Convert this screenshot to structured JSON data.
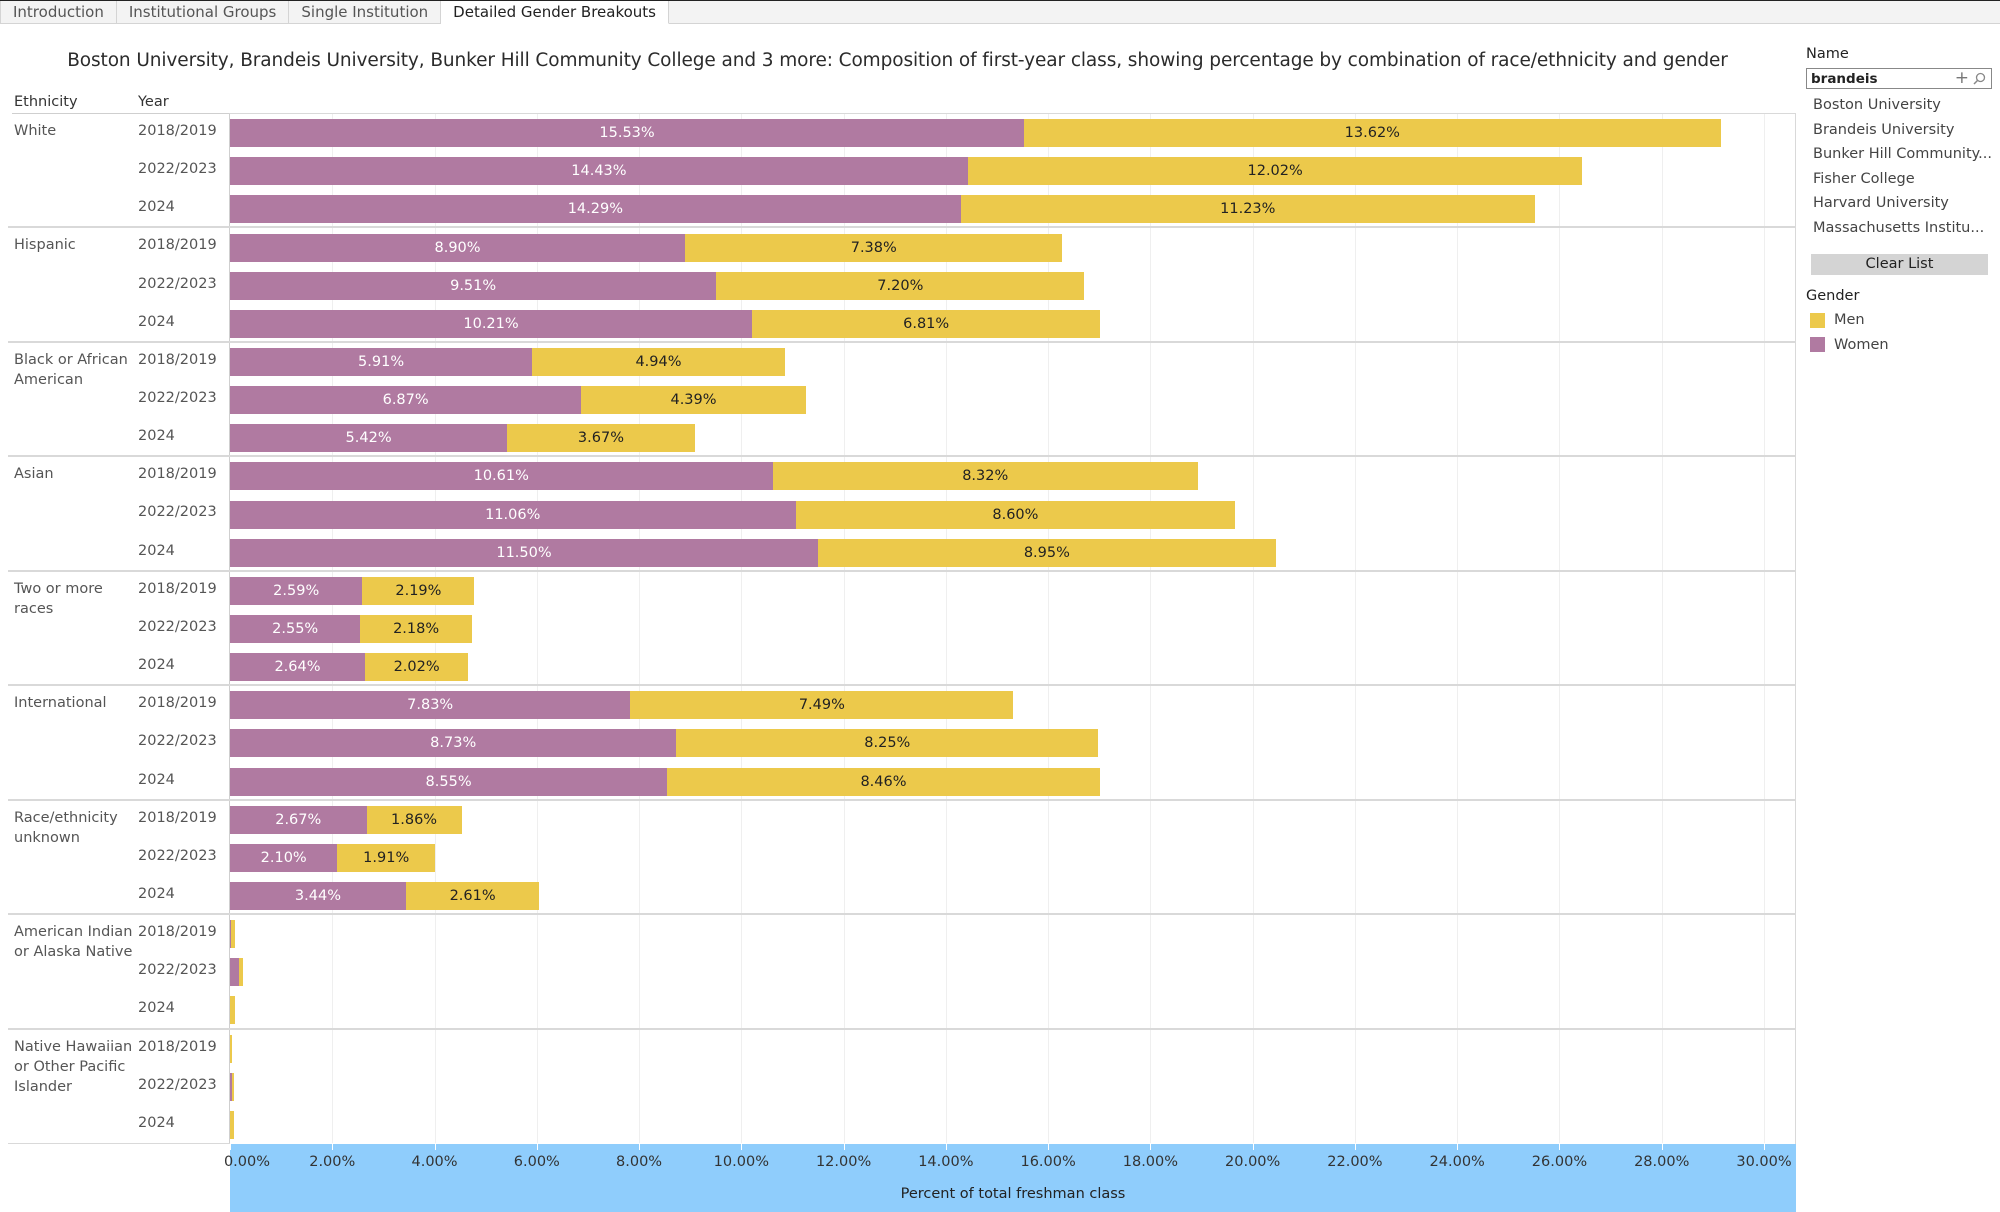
{
  "tabs": [
    {
      "label": "Introduction",
      "active": false
    },
    {
      "label": "Institutional Groups",
      "active": false
    },
    {
      "label": "Single Institution",
      "active": false
    },
    {
      "label": "Detailed Gender Breakouts",
      "active": true
    }
  ],
  "headers": {
    "ethnicity": "Ethnicity",
    "year": "Year"
  },
  "sidebar": {
    "name_label": "Name",
    "search_value": "brandeis",
    "plus_glyph": "+",
    "list_items": [
      "Boston University",
      "Brandeis University",
      "Bunker Hill Community...",
      "Fisher College",
      "Harvard University",
      "Massachusetts Institu..."
    ],
    "clear_list_label": "Clear List",
    "legend_title": "Gender",
    "legend": [
      {
        "label": "Men",
        "color": "#ecc94b"
      },
      {
        "label": "Women",
        "color": "#b07aa1"
      }
    ]
  },
  "chart_data": {
    "type": "bar",
    "orientation": "horizontal",
    "stacked": true,
    "title": "Boston University, Brandeis University, Bunker Hill Community College and 3 more: Composition of first-year class, showing percentage by combination of race/ethnicity and gender",
    "xlabel": "Percent of total freshman class",
    "ylabel": "",
    "xlim": [
      0,
      30.5
    ],
    "x_ticks": [
      "0.00%",
      "2.00%",
      "4.00%",
      "6.00%",
      "8.00%",
      "10.00%",
      "12.00%",
      "14.00%",
      "16.00%",
      "18.00%",
      "20.00%",
      "22.00%",
      "24.00%",
      "26.00%",
      "28.00%",
      "30.00%"
    ],
    "x_tick_values": [
      0,
      2,
      4,
      6,
      8,
      10,
      12,
      14,
      16,
      18,
      20,
      22,
      24,
      26,
      28,
      30
    ],
    "grid": true,
    "legend_position": "right",
    "series_colors": {
      "Women": "#b07aa1",
      "Men": "#ecc94b"
    },
    "groups": [
      {
        "ethnicity": "White",
        "rows": [
          {
            "year": "2018/2019",
            "women": 15.53,
            "men": 13.62,
            "women_label": "15.53%",
            "men_label": "13.62%"
          },
          {
            "year": "2022/2023",
            "women": 14.43,
            "men": 12.02,
            "women_label": "14.43%",
            "men_label": "12.02%"
          },
          {
            "year": "2024",
            "women": 14.29,
            "men": 11.23,
            "women_label": "14.29%",
            "men_label": "11.23%"
          }
        ]
      },
      {
        "ethnicity": "Hispanic",
        "rows": [
          {
            "year": "2018/2019",
            "women": 8.9,
            "men": 7.38,
            "women_label": "8.90%",
            "men_label": "7.38%"
          },
          {
            "year": "2022/2023",
            "women": 9.51,
            "men": 7.2,
            "women_label": "9.51%",
            "men_label": "7.20%"
          },
          {
            "year": "2024",
            "women": 10.21,
            "men": 6.81,
            "women_label": "10.21%",
            "men_label": "6.81%"
          }
        ]
      },
      {
        "ethnicity": "Black or African American",
        "rows": [
          {
            "year": "2018/2019",
            "women": 5.91,
            "men": 4.94,
            "women_label": "5.91%",
            "men_label": "4.94%"
          },
          {
            "year": "2022/2023",
            "women": 6.87,
            "men": 4.39,
            "women_label": "6.87%",
            "men_label": "4.39%"
          },
          {
            "year": "2024",
            "women": 5.42,
            "men": 3.67,
            "women_label": "5.42%",
            "men_label": "3.67%"
          }
        ]
      },
      {
        "ethnicity": "Asian",
        "rows": [
          {
            "year": "2018/2019",
            "women": 10.61,
            "men": 8.32,
            "women_label": "10.61%",
            "men_label": "8.32%"
          },
          {
            "year": "2022/2023",
            "women": 11.06,
            "men": 8.6,
            "women_label": "11.06%",
            "men_label": "8.60%"
          },
          {
            "year": "2024",
            "women": 11.5,
            "men": 8.95,
            "women_label": "11.50%",
            "men_label": "8.95%"
          }
        ]
      },
      {
        "ethnicity": "Two or more races",
        "rows": [
          {
            "year": "2018/2019",
            "women": 2.59,
            "men": 2.19,
            "women_label": "2.59%",
            "men_label": "2.19%"
          },
          {
            "year": "2022/2023",
            "women": 2.55,
            "men": 2.18,
            "women_label": "2.55%",
            "men_label": "2.18%"
          },
          {
            "year": "2024",
            "women": 2.64,
            "men": 2.02,
            "women_label": "2.64%",
            "men_label": "2.02%"
          }
        ]
      },
      {
        "ethnicity": "International",
        "rows": [
          {
            "year": "2018/2019",
            "women": 7.83,
            "men": 7.49,
            "women_label": "7.83%",
            "men_label": "7.49%"
          },
          {
            "year": "2022/2023",
            "women": 8.73,
            "men": 8.25,
            "women_label": "8.73%",
            "men_label": "8.25%"
          },
          {
            "year": "2024",
            "women": 8.55,
            "men": 8.46,
            "women_label": "8.55%",
            "men_label": "8.46%"
          }
        ]
      },
      {
        "ethnicity": "Race/ethnicity unknown",
        "rows": [
          {
            "year": "2018/2019",
            "women": 2.67,
            "men": 1.86,
            "women_label": "2.67%",
            "men_label": "1.86%"
          },
          {
            "year": "2022/2023",
            "women": 2.1,
            "men": 1.91,
            "women_label": "2.10%",
            "men_label": "1.91%"
          },
          {
            "year": "2024",
            "women": 3.44,
            "men": 2.61,
            "women_label": "3.44%",
            "men_label": "2.61%"
          }
        ]
      },
      {
        "ethnicity": "American Indian or Alaska Native",
        "rows": [
          {
            "year": "2018/2019",
            "women": 0.02,
            "men": 0.08,
            "women_label": "",
            "men_label": ""
          },
          {
            "year": "2022/2023",
            "women": 0.18,
            "men": 0.08,
            "women_label": "",
            "men_label": ""
          },
          {
            "year": "2024",
            "women": 0.0,
            "men": 0.09,
            "women_label": "",
            "men_label": ""
          }
        ]
      },
      {
        "ethnicity": "Native Hawaiian or Other Pacific Islander",
        "rows": [
          {
            "year": "2018/2019",
            "women": 0.0,
            "men": 0.03,
            "women_label": "",
            "men_label": ""
          },
          {
            "year": "2022/2023",
            "women": 0.03,
            "men": 0.04,
            "women_label": "",
            "men_label": ""
          },
          {
            "year": "2024",
            "women": 0.0,
            "men": 0.07,
            "women_label": "",
            "men_label": ""
          }
        ]
      }
    ]
  }
}
